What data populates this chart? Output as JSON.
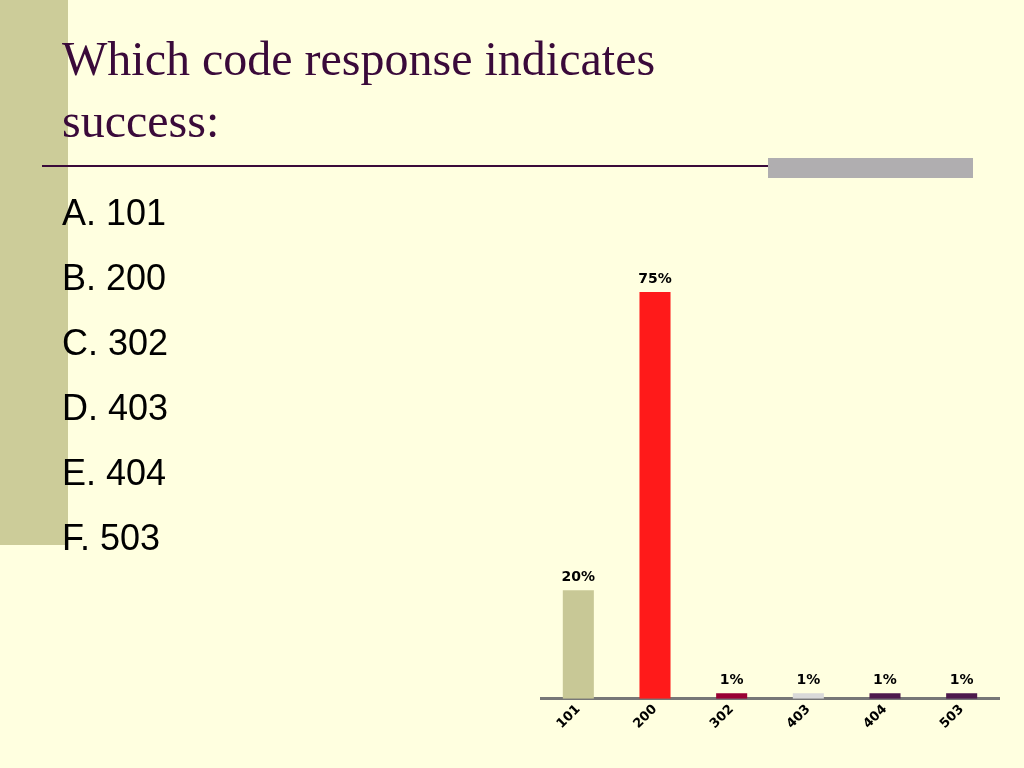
{
  "chart_data": {
    "type": "bar",
    "title": "Which code response indicates success:",
    "categories": [
      "101",
      "200",
      "302",
      "403",
      "404",
      "503"
    ],
    "values": [
      20,
      75,
      1,
      1,
      1,
      1
    ],
    "colors": [
      "#c8c896",
      "#ff1a1a",
      "#990033",
      "#d9d9d9",
      "#4d1a4d",
      "#4d1a4d"
    ],
    "value_labels": [
      "20%",
      "75%",
      "1%",
      "1%",
      "1%",
      "1%"
    ],
    "annotations": [
      "A. 101",
      "B. 200",
      "C. 302",
      "D. 403",
      "E. 404",
      "F. 503"
    ],
    "grid": false,
    "legend": false
  }
}
